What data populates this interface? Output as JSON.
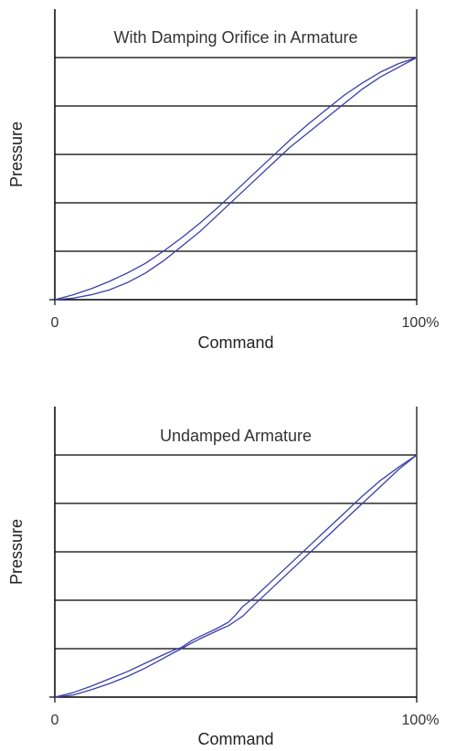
{
  "chart_data": [
    {
      "type": "line",
      "title": "With Damping Orifice in Armature",
      "xlabel": "Command",
      "ylabel": "Pressure",
      "x_ticks": [
        "0",
        "100%"
      ],
      "xlim": [
        0,
        100
      ],
      "ylim": [
        0,
        100
      ],
      "grid": true,
      "grid_divisions": 5,
      "line_color": "#3b3fa8",
      "series": [
        {
          "x": [
            0,
            5,
            10,
            15,
            20,
            25,
            30,
            35,
            40,
            45,
            50,
            55,
            60,
            65,
            70,
            75,
            80,
            85,
            90,
            95,
            100
          ],
          "y": [
            0,
            0.6,
            2,
            4,
            7,
            11,
            16,
            22,
            28,
            35,
            42,
            49,
            56,
            63,
            69,
            75,
            81,
            87,
            92,
            96,
            100
          ]
        },
        {
          "x": [
            0,
            5,
            10,
            15,
            20,
            25,
            30,
            35,
            40,
            45,
            50,
            55,
            60,
            65,
            70,
            75,
            80,
            85,
            90,
            95,
            100
          ],
          "y": [
            0,
            2,
            4.5,
            7.5,
            11,
            15,
            20,
            25.5,
            31.5,
            38,
            45,
            52,
            59,
            66,
            72.5,
            78.5,
            84.5,
            89.5,
            94,
            97.5,
            100
          ]
        }
      ]
    },
    {
      "type": "line",
      "title": "Undamped Armature",
      "xlabel": "Command",
      "ylabel": "Pressure",
      "x_ticks": [
        "0",
        "100%"
      ],
      "xlim": [
        0,
        100
      ],
      "ylim": [
        0,
        100
      ],
      "grid": true,
      "grid_divisions": 5,
      "line_color": "#3b3fa8",
      "series": [
        {
          "x": [
            0,
            5,
            10,
            15,
            20,
            25,
            30,
            33,
            35,
            38,
            40,
            45,
            48,
            50,
            52,
            55,
            60,
            65,
            70,
            75,
            80,
            85,
            90,
            95,
            100
          ],
          "y": [
            0,
            0.8,
            3,
            5.5,
            8.5,
            12,
            16,
            18.5,
            20,
            22.5,
            24,
            27.5,
            29.5,
            31.5,
            33.5,
            38,
            45,
            52,
            59,
            66,
            73,
            80,
            87,
            94,
            100
          ]
        },
        {
          "x": [
            0,
            5,
            10,
            15,
            20,
            25,
            30,
            33,
            35,
            38,
            40,
            45,
            48,
            50,
            52,
            55,
            60,
            65,
            70,
            75,
            80,
            85,
            90,
            95,
            100
          ],
          "y": [
            0,
            1.8,
            4.5,
            7.5,
            10.5,
            14,
            17.5,
            19.5,
            20.5,
            23.5,
            25,
            28.5,
            31,
            34,
            37.5,
            41,
            48,
            55,
            62,
            69,
            76,
            83,
            89.5,
            95,
            100
          ]
        }
      ]
    }
  ]
}
